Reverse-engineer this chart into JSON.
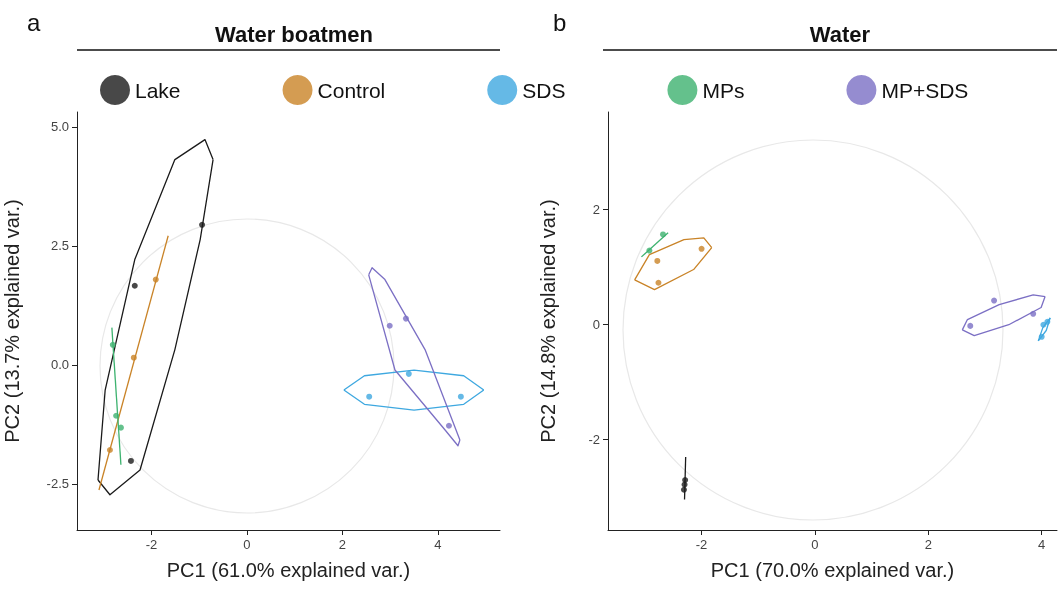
{
  "chart_data": [
    {
      "type": "scatter",
      "title": "Water boatmen",
      "xlabel": "PC1 (61.0% explained var.)",
      "ylabel": "PC2 (13.7% explained var.)",
      "annotations": [
        "a"
      ],
      "legend": "top",
      "grid": false,
      "marker": "circle",
      "xlim": [
        -3.56,
        5.3
      ],
      "ylim": [
        -3.47,
        5.31
      ],
      "xticks": [
        -2,
        0,
        2,
        4
      ],
      "yticks": [
        {
          "value": -2.5,
          "label": "-2.5"
        },
        {
          "value": 0,
          "label": "0.0"
        },
        {
          "value": 2.5,
          "label": "2.5"
        },
        {
          "value": 5,
          "label": "5.0"
        }
      ],
      "series": [
        {
          "type": "line",
          "marker": "none",
          "color": "#1a1a1a",
          "x": [
            -3.12,
            -2.97,
            -2.35,
            -1.51,
            -0.88,
            -0.71
          ],
          "values": [
            -2.42,
            -0.53,
            2.21,
            4.31,
            4.73,
            4.31
          ]
        },
        {
          "type": "line",
          "marker": "none",
          "color": "#1a1a1a",
          "x": [
            -3.12,
            -2.87,
            -2.24,
            -1.51,
            -0.98,
            -0.71
          ],
          "values": [
            -2.42,
            -2.73,
            -2.21,
            0.32,
            2.63,
            4.31
          ]
        },
        {
          "type": "line",
          "marker": "none",
          "color": "#c98327",
          "x": [
            -3.1,
            -1.65
          ],
          "values": [
            -2.63,
            2.71
          ]
        },
        {
          "type": "line",
          "marker": "none",
          "color": "#3db26f",
          "x": [
            -2.83,
            -2.64
          ],
          "values": [
            0.78,
            -2.1
          ]
        },
        {
          "type": "line",
          "marker": "none",
          "color": "#3ea8e0",
          "x": [
            2.03,
            2.46,
            3.5,
            4.54,
            4.96
          ],
          "values": [
            -0.53,
            -0.23,
            -0.11,
            -0.23,
            -0.53
          ]
        },
        {
          "type": "line",
          "marker": "none",
          "color": "#3ea8e0",
          "x": [
            2.03,
            2.46,
            3.5,
            4.54,
            4.96
          ],
          "values": [
            -0.53,
            -0.83,
            -0.95,
            -0.83,
            -0.53
          ]
        },
        {
          "type": "line",
          "marker": "none",
          "color": "#7b6fc4",
          "x": [
            2.55,
            2.62,
            2.89,
            3.73,
            4.46
          ],
          "values": [
            1.89,
            2.04,
            1.79,
            0.32,
            -1.58
          ]
        },
        {
          "type": "line",
          "marker": "none",
          "color": "#7b6fc4",
          "x": [
            2.55,
            3.1,
            4.15,
            4.42,
            4.46
          ],
          "values": [
            1.89,
            -0.11,
            -1.37,
            -1.7,
            -1.58
          ]
        },
        {
          "name": "Lake",
          "color": "#1a1a1a",
          "x": [
            -0.94,
            -2.35,
            -2.43
          ],
          "values": [
            2.94,
            1.66,
            -2.02
          ]
        },
        {
          "name": "Control",
          "color": "#c98327",
          "x": [
            -1.91,
            -2.37,
            -2.87
          ],
          "values": [
            1.79,
            0.15,
            -1.79
          ]
        },
        {
          "name": "SDS",
          "color": "#3ea8e0",
          "x": [
            2.56,
            3.39,
            4.48
          ],
          "values": [
            -0.67,
            -0.19,
            -0.67
          ]
        },
        {
          "name": "MPs",
          "color": "#3db26f",
          "x": [
            -2.81,
            -2.74,
            -2.64
          ],
          "values": [
            0.42,
            -1.07,
            -1.32
          ]
        },
        {
          "name": "MP+SDS",
          "color": "#7b6fc4",
          "x": [
            2.99,
            3.33,
            4.23
          ],
          "values": [
            0.82,
            0.97,
            -1.28
          ]
        }
      ]
    },
    {
      "type": "scatter",
      "title": "Water",
      "xlabel": "PC1 (70.0% explained var.)",
      "ylabel": "PC2 (14.8% explained var.)",
      "annotations": [
        "b"
      ],
      "grid": false,
      "marker": "circle",
      "xlim": [
        -3.65,
        4.27
      ],
      "ylim": [
        -3.57,
        3.7
      ],
      "xticks": [
        -2,
        0,
        2,
        4
      ],
      "yticks": [
        -2,
        0,
        2
      ],
      "series": [
        {
          "type": "line",
          "marker": "none",
          "color": "#c98327",
          "x": [
            -3.18,
            -2.83,
            -2.14,
            -1.82
          ],
          "values": [
            0.78,
            0.61,
            0.96,
            1.34
          ]
        },
        {
          "type": "line",
          "marker": "none",
          "color": "#c98327",
          "x": [
            -3.18,
            -2.92,
            -2.31,
            -1.96,
            -1.82
          ],
          "values": [
            0.78,
            1.22,
            1.48,
            1.51,
            1.34
          ]
        },
        {
          "type": "line",
          "marker": "none",
          "color": "#3db26f",
          "x": [
            -3.06,
            -2.59
          ],
          "values": [
            1.18,
            1.6
          ]
        },
        {
          "type": "line",
          "marker": "none",
          "color": "#1a1a1a",
          "x": [
            -2.28,
            -2.3
          ],
          "values": [
            -2.3,
            -3.04
          ]
        },
        {
          "type": "line",
          "marker": "none",
          "color": "#7b6fc4",
          "x": [
            2.6,
            2.81,
            3.42,
            3.99,
            4.06
          ],
          "values": [
            -0.09,
            -0.19,
            0,
            0.3,
            0.49
          ]
        },
        {
          "type": "line",
          "marker": "none",
          "color": "#7b6fc4",
          "x": [
            2.6,
            2.69,
            3.25,
            3.85,
            4.06
          ],
          "values": [
            -0.09,
            0.09,
            0.35,
            0.52,
            0.49
          ]
        },
        {
          "type": "line",
          "marker": "none",
          "color": "#3ea8e0",
          "x": [
            3.94,
            4.02,
            4.15
          ],
          "values": [
            -0.28,
            -0.05,
            0.12
          ]
        },
        {
          "type": "line",
          "marker": "none",
          "color": "#3ea8e0",
          "x": [
            3.94,
            4.08,
            4.15
          ],
          "values": [
            -0.28,
            -0.1,
            0.12
          ]
        },
        {
          "color": "#1a1a1a",
          "x": [
            -2.29,
            -2.31,
            -2.3
          ],
          "values": [
            -2.7,
            -2.87,
            -2.78
          ]
        },
        {
          "color": "#c98327",
          "x": [
            -2.78,
            -2.76,
            -2.0
          ],
          "values": [
            1.11,
            0.73,
            1.32
          ]
        },
        {
          "color": "#3ea8e0",
          "x": [
            4.03,
            4.0,
            4.1
          ],
          "values": [
            0,
            -0.21,
            0.05
          ]
        },
        {
          "color": "#3db26f",
          "x": [
            -2.92,
            -2.68
          ],
          "values": [
            1.29,
            1.57
          ]
        },
        {
          "color": "#7b6fc4",
          "x": [
            2.74,
            3.16,
            3.85
          ],
          "values": [
            -0.02,
            0.42,
            0.19
          ]
        }
      ]
    }
  ]
}
